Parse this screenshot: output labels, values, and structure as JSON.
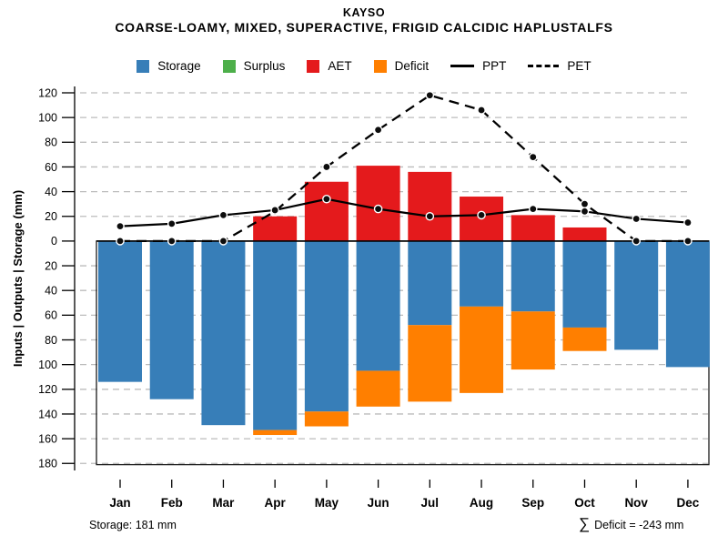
{
  "header": {
    "title": "KAYSO",
    "subtitle": "COARSE-LOAMY, MIXED, SUPERACTIVE, FRIGID CALCIDIC HAPLUSTALFS"
  },
  "legend": {
    "items": [
      {
        "label": "Storage",
        "swatch": "box",
        "color": "#377eb8"
      },
      {
        "label": "Surplus",
        "swatch": "box",
        "color": "#4daf4a"
      },
      {
        "label": "AET",
        "swatch": "box",
        "color": "#e41a1c"
      },
      {
        "label": "Deficit",
        "swatch": "box",
        "color": "#ff7f00"
      },
      {
        "label": "PPT",
        "swatch": "solid-line",
        "color": "#000000"
      },
      {
        "label": "PET",
        "swatch": "dashed-line",
        "color": "#000000"
      }
    ]
  },
  "y_axis": {
    "title": "Inputs | Outputs | Storage  (mm)",
    "ticks": [
      120,
      100,
      80,
      60,
      40,
      20,
      0,
      -20,
      -40,
      -60,
      -80,
      -100,
      -120,
      -140,
      -160,
      -180
    ],
    "tick_labels_absolute": true
  },
  "footer": {
    "storage_note": "Storage: 181 mm",
    "deficit_sigma": "∑",
    "deficit_note": "Deficit = -243 mm"
  },
  "chart_data": {
    "type": "bar",
    "subtype": "water-balance combo (stacked bars above/below zero + two lines)",
    "categories": [
      "Jan",
      "Feb",
      "Mar",
      "Apr",
      "May",
      "Jun",
      "Jul",
      "Aug",
      "Sep",
      "Oct",
      "Nov",
      "Dec"
    ],
    "series": [
      {
        "name": "Storage",
        "type": "bar",
        "direction": "down",
        "color": "#377eb8",
        "values": [
          114,
          128,
          149,
          153,
          138,
          105,
          68,
          53,
          57,
          70,
          88,
          102
        ]
      },
      {
        "name": "Deficit",
        "type": "bar",
        "direction": "down",
        "stacked_below": "Storage",
        "color": "#ff7f00",
        "values": [
          0,
          0,
          0,
          4,
          12,
          29,
          62,
          70,
          47,
          19,
          0,
          0
        ]
      },
      {
        "name": "AET",
        "type": "bar",
        "direction": "up",
        "color": "#e41a1c",
        "values": [
          0,
          0,
          0,
          20,
          48,
          61,
          56,
          36,
          21,
          11,
          0,
          0
        ]
      },
      {
        "name": "Surplus",
        "type": "bar",
        "direction": "up",
        "color": "#4daf4a",
        "values": [
          0,
          0,
          0,
          0,
          0,
          0,
          0,
          0,
          0,
          0,
          0,
          0
        ]
      },
      {
        "name": "PPT",
        "type": "line",
        "style": "solid",
        "color": "#000000",
        "values": [
          12,
          14,
          21,
          25,
          34,
          26,
          20,
          21,
          26,
          24,
          18,
          15
        ]
      },
      {
        "name": "PET",
        "type": "line",
        "style": "dashed",
        "color": "#000000",
        "values": [
          0,
          0,
          0,
          24,
          60,
          90,
          118,
          106,
          68,
          30,
          0,
          0
        ]
      }
    ],
    "ylim": [
      -190,
      125
    ],
    "grid": true,
    "legend_position": "top",
    "storage_capacity_mm": 181,
    "deficit_total_mm": -243,
    "title": "KAYSO",
    "xlabel": "",
    "ylabel": "Inputs | Outputs | Storage  (mm)"
  }
}
